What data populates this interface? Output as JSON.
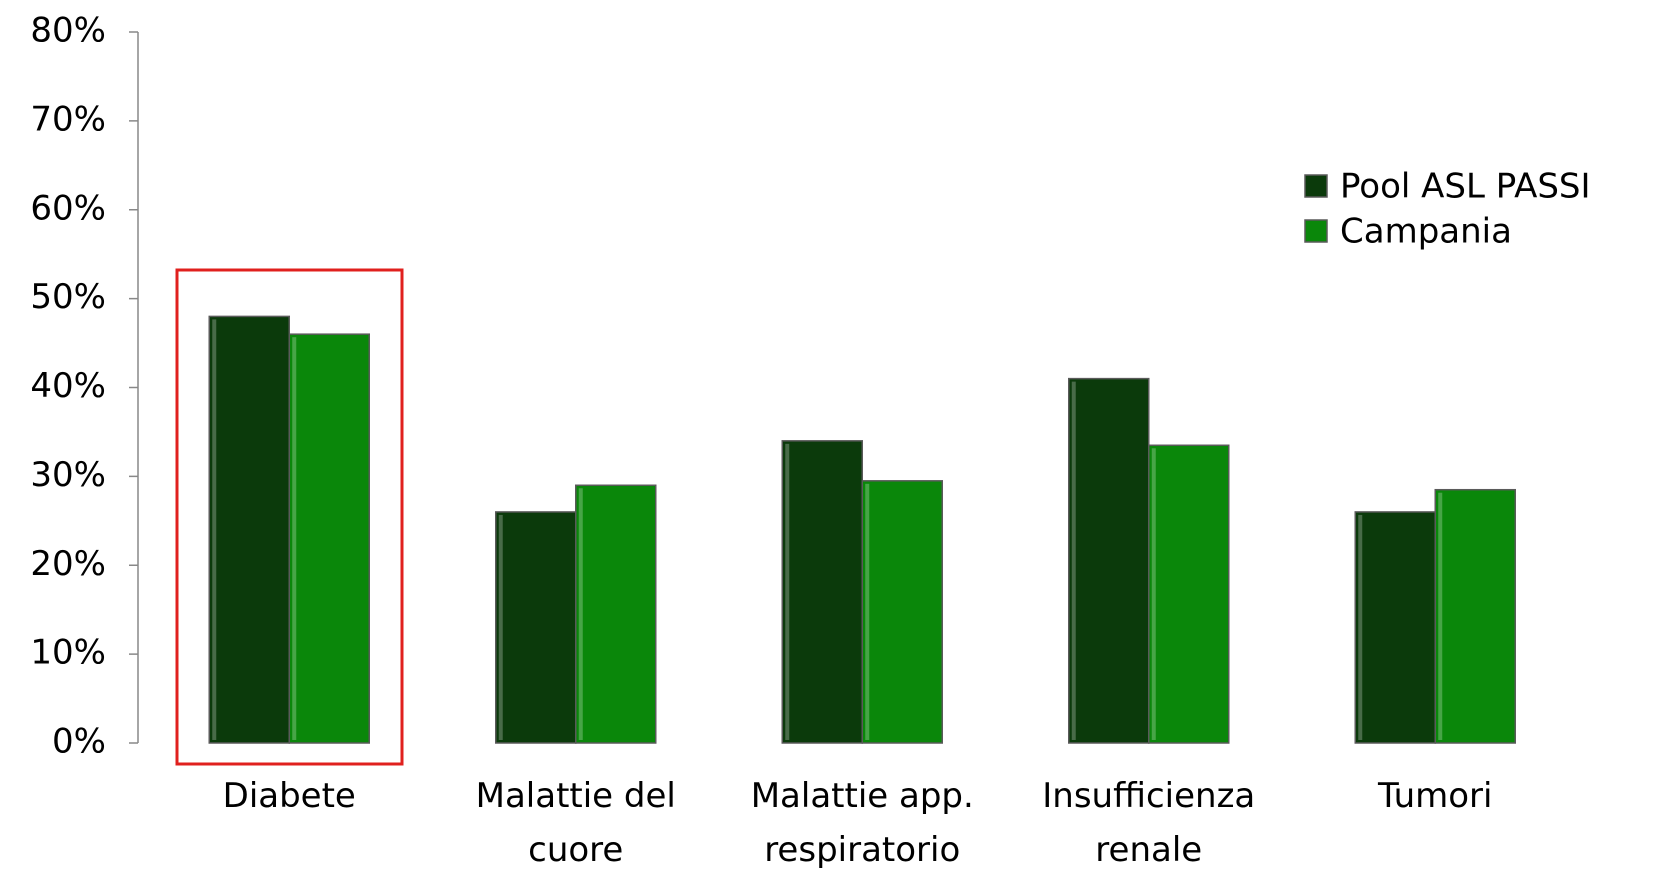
{
  "chart_data": {
    "type": "bar",
    "categories": [
      "Diabete",
      "Malattie del cuore",
      "Malattie app. respiratorio",
      "Insufficienza renale",
      "Tumori"
    ],
    "series": [
      {
        "name": "Pool ASL PASSI",
        "color": "#0b3a0b",
        "values": [
          48,
          26,
          34,
          41,
          26
        ]
      },
      {
        "name": "Campania",
        "color": "#0a870a",
        "values": [
          46,
          29,
          29.5,
          33.5,
          28.5
        ]
      }
    ],
    "ylim": [
      0,
      80
    ],
    "yticks": [
      {
        "value": 0,
        "label": "0%"
      },
      {
        "value": 10,
        "label": "10%"
      },
      {
        "value": 20,
        "label": "20%"
      },
      {
        "value": 30,
        "label": "30%"
      },
      {
        "value": 40,
        "label": "40%"
      },
      {
        "value": 50,
        "label": "50%"
      },
      {
        "value": 60,
        "label": "60%"
      },
      {
        "value": 70,
        "label": "70%"
      },
      {
        "value": 80,
        "label": "80%"
      }
    ],
    "legend": "right"
  }
}
